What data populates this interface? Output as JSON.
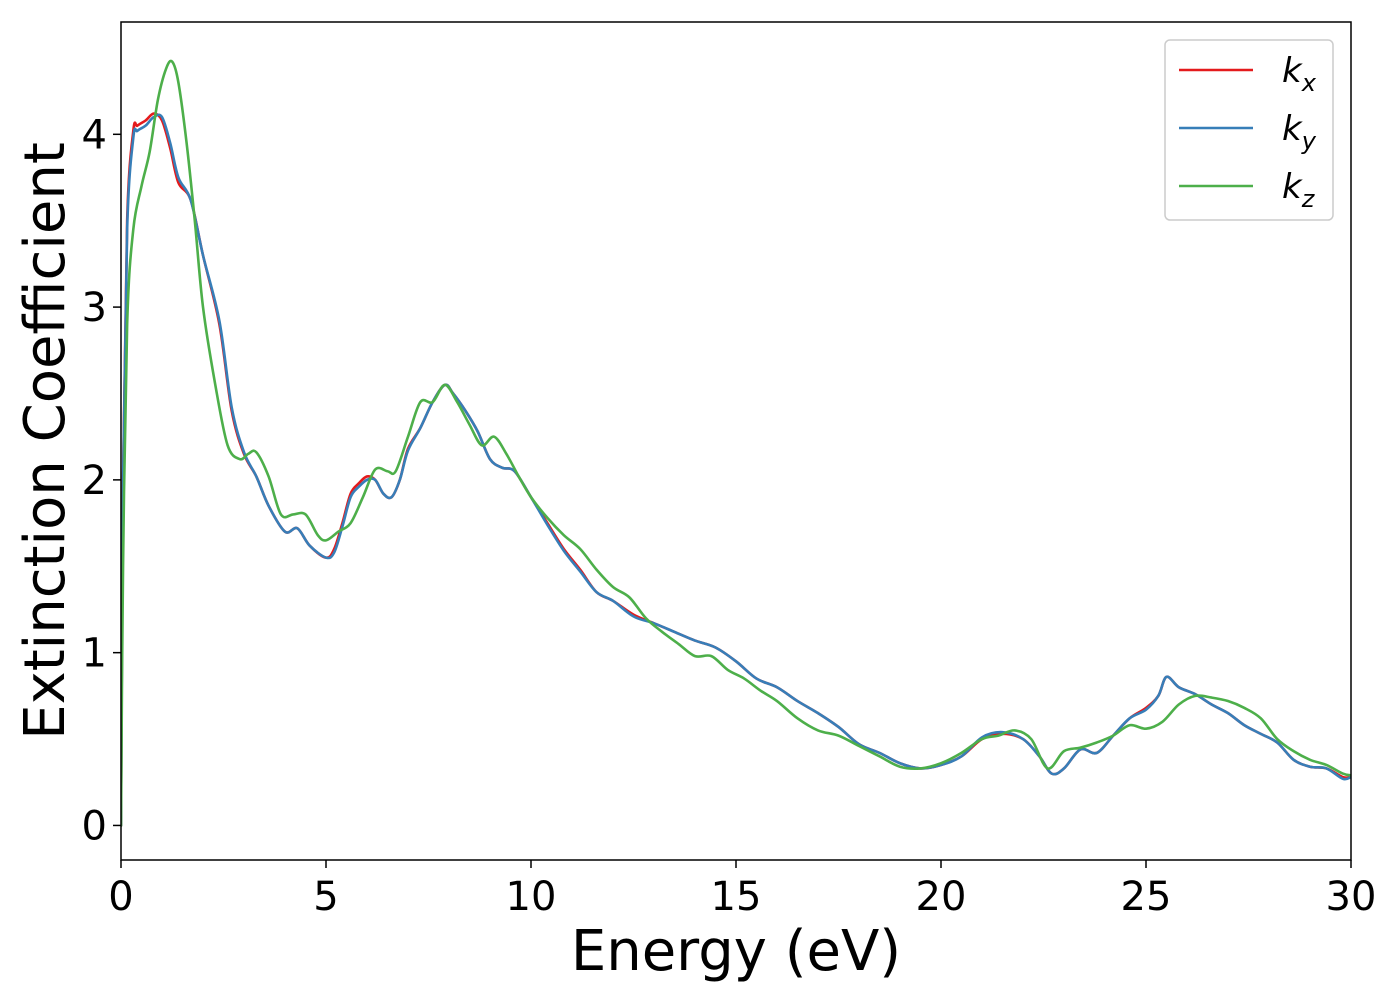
{
  "chart_data": {
    "type": "line",
    "xlabel": "Energy (eV)",
    "ylabel": "Extinction Coefficient",
    "xlim": [
      0,
      30
    ],
    "ylim": [
      -0.2,
      4.65
    ],
    "xticks": [
      0,
      5,
      10,
      15,
      20,
      25,
      30
    ],
    "xtick_labels": [
      "0",
      "5",
      "10",
      "15",
      "20",
      "25",
      "30"
    ],
    "yticks": [
      0,
      1,
      2,
      3,
      4
    ],
    "ytick_labels": [
      "0",
      "1",
      "2",
      "3",
      "4"
    ],
    "grid": false,
    "legend_position": "top-right",
    "series": [
      {
        "name": "kx",
        "legend_base": "k",
        "legend_sub": "x",
        "color": "#e41a1c",
        "x": [
          0,
          0.05,
          0.15,
          0.3,
          0.4,
          0.6,
          0.8,
          1.0,
          1.2,
          1.4,
          1.7,
          2.0,
          2.4,
          2.7,
          3.0,
          3.3,
          3.6,
          4.0,
          4.3,
          4.6,
          5.0,
          5.2,
          5.4,
          5.6,
          5.8,
          6.0,
          6.2,
          6.4,
          6.6,
          6.8,
          7.0,
          7.3,
          7.6,
          7.9,
          8.1,
          8.4,
          8.7,
          9.0,
          9.3,
          9.6,
          10.0,
          10.4,
          10.8,
          11.2,
          11.6,
          12.0,
          12.5,
          13.0,
          13.5,
          14.0,
          14.5,
          15.0,
          15.5,
          16.0,
          16.5,
          17.0,
          17.5,
          18.0,
          18.5,
          19.0,
          19.5,
          20.0,
          20.5,
          21.0,
          21.5,
          22.0,
          22.4,
          22.7,
          23.0,
          23.4,
          23.8,
          24.2,
          24.6,
          25.0,
          25.3,
          25.5,
          25.8,
          26.2,
          26.6,
          27.0,
          27.4,
          27.8,
          28.2,
          28.6,
          29.0,
          29.4,
          29.8,
          30.0
        ],
        "y": [
          0.0,
          2.0,
          3.5,
          4.02,
          4.05,
          4.08,
          4.12,
          4.08,
          3.92,
          3.72,
          3.62,
          3.3,
          2.9,
          2.4,
          2.15,
          2.02,
          1.85,
          1.7,
          1.72,
          1.62,
          1.55,
          1.6,
          1.75,
          1.92,
          1.98,
          2.02,
          2.0,
          1.92,
          1.9,
          2.0,
          2.18,
          2.3,
          2.45,
          2.55,
          2.5,
          2.4,
          2.28,
          2.12,
          2.07,
          2.05,
          1.9,
          1.75,
          1.6,
          1.48,
          1.35,
          1.3,
          1.22,
          1.17,
          1.12,
          1.07,
          1.03,
          0.95,
          0.85,
          0.8,
          0.72,
          0.65,
          0.57,
          0.47,
          0.42,
          0.36,
          0.33,
          0.35,
          0.4,
          0.5,
          0.53,
          0.5,
          0.4,
          0.3,
          0.33,
          0.44,
          0.42,
          0.52,
          0.62,
          0.68,
          0.75,
          0.86,
          0.8,
          0.76,
          0.7,
          0.65,
          0.58,
          0.53,
          0.48,
          0.38,
          0.34,
          0.33,
          0.28,
          0.28
        ]
      },
      {
        "name": "ky",
        "legend_base": "k",
        "legend_sub": "y",
        "color": "#377eb8",
        "x": [
          0,
          0.05,
          0.15,
          0.3,
          0.4,
          0.6,
          0.8,
          1.0,
          1.2,
          1.4,
          1.7,
          2.0,
          2.4,
          2.7,
          3.0,
          3.3,
          3.6,
          4.0,
          4.3,
          4.6,
          5.0,
          5.2,
          5.4,
          5.6,
          5.8,
          6.0,
          6.2,
          6.4,
          6.6,
          6.8,
          7.0,
          7.3,
          7.6,
          7.9,
          8.1,
          8.4,
          8.7,
          9.0,
          9.3,
          9.6,
          10.0,
          10.4,
          10.8,
          11.2,
          11.6,
          12.0,
          12.5,
          13.0,
          13.5,
          14.0,
          14.5,
          15.0,
          15.5,
          16.0,
          16.5,
          17.0,
          17.5,
          18.0,
          18.5,
          19.0,
          19.5,
          20.0,
          20.5,
          21.0,
          21.5,
          22.0,
          22.4,
          22.7,
          23.0,
          23.4,
          23.8,
          24.2,
          24.6,
          25.0,
          25.3,
          25.5,
          25.8,
          26.2,
          26.6,
          27.0,
          27.4,
          27.8,
          28.2,
          28.6,
          29.0,
          29.4,
          29.8,
          30.0
        ],
        "y": [
          0.0,
          1.95,
          3.45,
          3.98,
          4.02,
          4.05,
          4.1,
          4.1,
          3.95,
          3.75,
          3.62,
          3.3,
          2.92,
          2.42,
          2.16,
          2.02,
          1.85,
          1.7,
          1.72,
          1.62,
          1.55,
          1.58,
          1.73,
          1.9,
          1.96,
          2.0,
          2.0,
          1.92,
          1.9,
          2.0,
          2.17,
          2.3,
          2.45,
          2.55,
          2.5,
          2.4,
          2.28,
          2.12,
          2.07,
          2.05,
          1.9,
          1.74,
          1.59,
          1.47,
          1.35,
          1.3,
          1.21,
          1.17,
          1.12,
          1.07,
          1.03,
          0.95,
          0.85,
          0.8,
          0.72,
          0.65,
          0.57,
          0.47,
          0.42,
          0.36,
          0.33,
          0.35,
          0.4,
          0.51,
          0.54,
          0.5,
          0.4,
          0.3,
          0.33,
          0.44,
          0.42,
          0.52,
          0.62,
          0.67,
          0.75,
          0.86,
          0.8,
          0.76,
          0.7,
          0.65,
          0.58,
          0.53,
          0.48,
          0.38,
          0.34,
          0.33,
          0.27,
          0.28
        ]
      },
      {
        "name": "kz",
        "legend_base": "k",
        "legend_sub": "z",
        "color": "#4daf4a",
        "x": [
          0,
          0.05,
          0.15,
          0.3,
          0.5,
          0.7,
          0.9,
          1.1,
          1.25,
          1.4,
          1.6,
          1.8,
          2.0,
          2.3,
          2.6,
          2.9,
          3.1,
          3.3,
          3.6,
          3.9,
          4.2,
          4.5,
          4.8,
          5.0,
          5.3,
          5.6,
          5.9,
          6.2,
          6.5,
          6.7,
          7.0,
          7.3,
          7.6,
          7.9,
          8.2,
          8.5,
          8.8,
          9.1,
          9.4,
          9.7,
          10.0,
          10.4,
          10.8,
          11.2,
          11.6,
          12.0,
          12.4,
          12.8,
          13.2,
          13.6,
          14.0,
          14.4,
          14.8,
          15.2,
          15.6,
          16.0,
          16.5,
          17.0,
          17.5,
          18.0,
          18.5,
          19.0,
          19.5,
          20.0,
          20.5,
          21.0,
          21.4,
          21.8,
          22.2,
          22.6,
          23.0,
          23.4,
          23.8,
          24.2,
          24.6,
          25.0,
          25.4,
          25.8,
          26.2,
          26.6,
          27.0,
          27.4,
          27.8,
          28.2,
          28.6,
          29.0,
          29.4,
          29.8,
          30.0
        ],
        "y": [
          0.0,
          1.5,
          2.9,
          3.45,
          3.7,
          3.9,
          4.2,
          4.38,
          4.42,
          4.3,
          3.95,
          3.5,
          3.0,
          2.55,
          2.2,
          2.12,
          2.15,
          2.16,
          2.02,
          1.8,
          1.8,
          1.8,
          1.68,
          1.65,
          1.7,
          1.75,
          1.9,
          2.06,
          2.05,
          2.05,
          2.25,
          2.45,
          2.45,
          2.55,
          2.45,
          2.32,
          2.2,
          2.25,
          2.15,
          2.02,
          1.9,
          1.78,
          1.68,
          1.6,
          1.48,
          1.38,
          1.32,
          1.2,
          1.12,
          1.05,
          0.98,
          0.98,
          0.9,
          0.85,
          0.78,
          0.72,
          0.62,
          0.55,
          0.52,
          0.46,
          0.4,
          0.34,
          0.33,
          0.36,
          0.42,
          0.5,
          0.52,
          0.55,
          0.5,
          0.33,
          0.43,
          0.45,
          0.48,
          0.52,
          0.58,
          0.56,
          0.6,
          0.7,
          0.75,
          0.74,
          0.72,
          0.68,
          0.62,
          0.5,
          0.43,
          0.38,
          0.35,
          0.3,
          0.29
        ]
      }
    ]
  }
}
